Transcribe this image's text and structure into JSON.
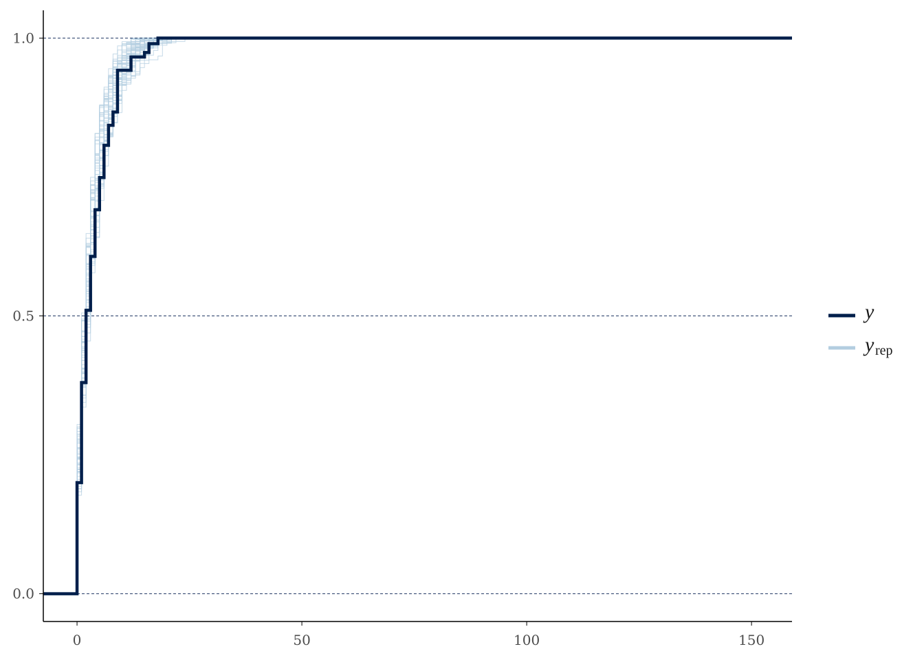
{
  "chart_data": {
    "type": "line",
    "subtype": "empirical-cdf-step",
    "title": "",
    "xlabel": "",
    "ylabel": "",
    "xlim": [
      -7.5,
      159
    ],
    "ylim": [
      -0.05,
      1.05
    ],
    "x_ticks": [
      0,
      50,
      100,
      150
    ],
    "x_tick_labels": [
      "0",
      "50",
      "100",
      "150"
    ],
    "y_ticks": [
      0.0,
      0.5,
      1.0
    ],
    "y_tick_labels": [
      "0.0",
      "0.5",
      "1.0"
    ],
    "hlines": [
      0.0,
      0.5,
      1.0
    ],
    "grid": "dashed horizontal at y ticks",
    "legend_position": "right",
    "colors": {
      "y": "#011f4b",
      "yrep": "#b3cde0",
      "hline": "#203864"
    },
    "series": [
      {
        "name": "y",
        "label_main": "y",
        "label_sub": "",
        "color": "#011f4b",
        "points": [
          [
            -7.5,
            0.0
          ],
          [
            0,
            0.0
          ],
          [
            0,
            0.2
          ],
          [
            1,
            0.2
          ],
          [
            1,
            0.38
          ],
          [
            2,
            0.38
          ],
          [
            2,
            0.51
          ],
          [
            3,
            0.51
          ],
          [
            3,
            0.607
          ],
          [
            4,
            0.607
          ],
          [
            4,
            0.691
          ],
          [
            5,
            0.691
          ],
          [
            5,
            0.749
          ],
          [
            6,
            0.749
          ],
          [
            6,
            0.807
          ],
          [
            7,
            0.807
          ],
          [
            7,
            0.843
          ],
          [
            8,
            0.843
          ],
          [
            8,
            0.867
          ],
          [
            9,
            0.867
          ],
          [
            9,
            0.942
          ],
          [
            12,
            0.942
          ],
          [
            12,
            0.966
          ],
          [
            15,
            0.966
          ],
          [
            15,
            0.974
          ],
          [
            16,
            0.974
          ],
          [
            16,
            0.99
          ],
          [
            18,
            0.99
          ],
          [
            18,
            1.0
          ],
          [
            159,
            1.0
          ]
        ]
      },
      {
        "name": "yrep",
        "label_main": "y",
        "label_sub": "rep",
        "color": "#b3cde0",
        "draws": 50
      }
    ]
  }
}
